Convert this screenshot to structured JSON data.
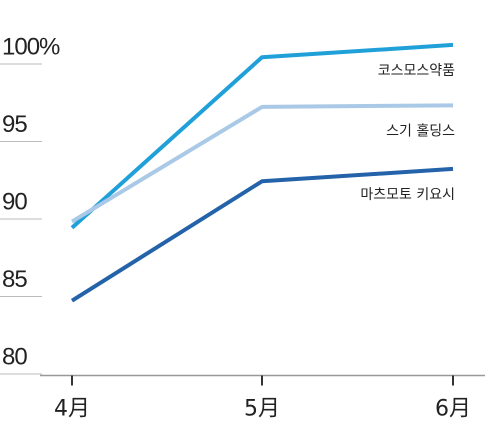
{
  "chart_data": {
    "type": "line",
    "categories": [
      "4月",
      "5月",
      "6月"
    ],
    "series": [
      {
        "name": "코스모스약품",
        "color": "#1fa0d8",
        "values": [
          88.4,
          99.4,
          100.2
        ]
      },
      {
        "name": "스기 홀딩스",
        "color": "#a9c9e6",
        "values": [
          88.8,
          96.2,
          96.3
        ]
      },
      {
        "name": "마츠모토 키요시",
        "color": "#2462aa",
        "values": [
          83.7,
          91.4,
          92.2
        ]
      }
    ],
    "ylim": [
      79,
      102
    ],
    "yticks": [
      80,
      85,
      90,
      95,
      {
        "value": 100,
        "label": "100%"
      }
    ],
    "grid": false
  }
}
